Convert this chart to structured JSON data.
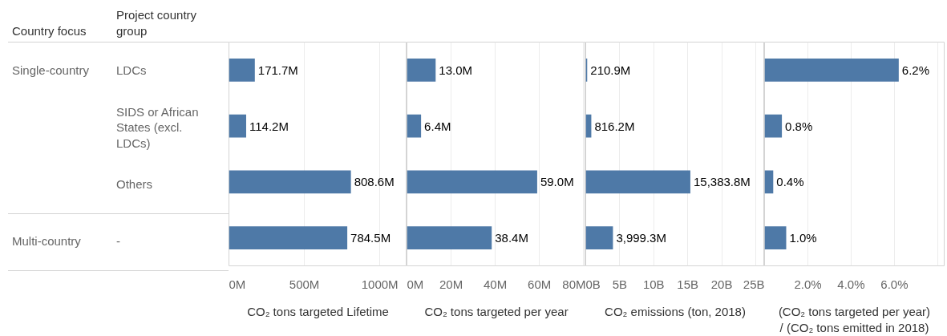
{
  "chart_data": [
    {
      "type": "bar",
      "orientation": "horizontal",
      "ylabel": "Project country group",
      "xlabel": "CO₂ tons targeted Lifetime",
      "categories": [
        "LDCs",
        "SIDS or African States (excl. LDCs)",
        "Others",
        "-"
      ],
      "annotations": [
        "Country focus",
        "Single-country",
        "Multi-country"
      ],
      "values": [
        171700000,
        114200000,
        808600000,
        784500000
      ],
      "value_labels": [
        "171.7M",
        "114.2M",
        "808.6M",
        "784.5M"
      ],
      "color": "#4e79a7",
      "xlim": [
        0,
        1180000000
      ],
      "xticks": [
        {
          "value": 0,
          "label": "0M"
        },
        {
          "value": 500000000,
          "label": "500M"
        },
        {
          "value": 1000000000,
          "label": "1000M"
        }
      ],
      "grid": "x"
    },
    {
      "type": "bar",
      "orientation": "horizontal",
      "xlabel": "CO₂ tons targeted per year",
      "tick_labels": "x",
      "values": [
        13000000,
        6400000,
        59000000,
        38400000
      ],
      "value_labels": [
        "13.0M",
        "6.4M",
        "59.0M",
        "38.4M"
      ],
      "color": "#4e79a7",
      "xlim": [
        0,
        81000000
      ],
      "xticks": [
        {
          "value": 0,
          "label": "0M"
        },
        {
          "value": 20000000,
          "label": "20M"
        },
        {
          "value": 40000000,
          "label": "40M"
        },
        {
          "value": 60000000,
          "label": "60M"
        },
        {
          "value": 80000000,
          "label": "80M"
        }
      ],
      "grid": "x"
    },
    {
      "type": "bar",
      "orientation": "horizontal",
      "xlabel": "CO₂ emissions (ton, 2018)",
      "tick_labels": "x",
      "values": [
        210900000,
        816200000,
        15383800000,
        3999300000
      ],
      "value_labels": [
        "210.9M",
        "816.2M",
        "15,383.8M",
        "3,999.3M"
      ],
      "color": "#4e79a7",
      "xlim": [
        0,
        26300000000
      ],
      "xticks": [
        {
          "value": 0,
          "label": "0B"
        },
        {
          "value": 5000000000,
          "label": "5B"
        },
        {
          "value": 10000000000,
          "label": "10B"
        },
        {
          "value": 15000000000,
          "label": "15B"
        },
        {
          "value": 20000000000,
          "label": "20B"
        },
        {
          "value": 25000000000,
          "label": "25B"
        }
      ],
      "grid": "x"
    },
    {
      "type": "bar",
      "orientation": "horizontal",
      "xlabel": "(CO₂ tons targeted per year) / (CO₂ tons emitted in 2018)",
      "tick_labels": "x",
      "values": [
        6.2,
        0.8,
        0.4,
        1.0
      ],
      "value_labels": [
        "6.2%",
        "0.8%",
        "0.4%",
        "1.0%"
      ],
      "color": "#4e79a7",
      "xlim": [
        0,
        8.3
      ],
      "xticks": [
        {
          "value": 0,
          "label": null
        },
        {
          "value": 2,
          "label": "2.0%"
        },
        {
          "value": 4,
          "label": "4.0%"
        },
        {
          "value": 6,
          "label": "6.0%"
        },
        {
          "value": 8,
          "label": null
        }
      ],
      "grid": "x"
    }
  ]
}
